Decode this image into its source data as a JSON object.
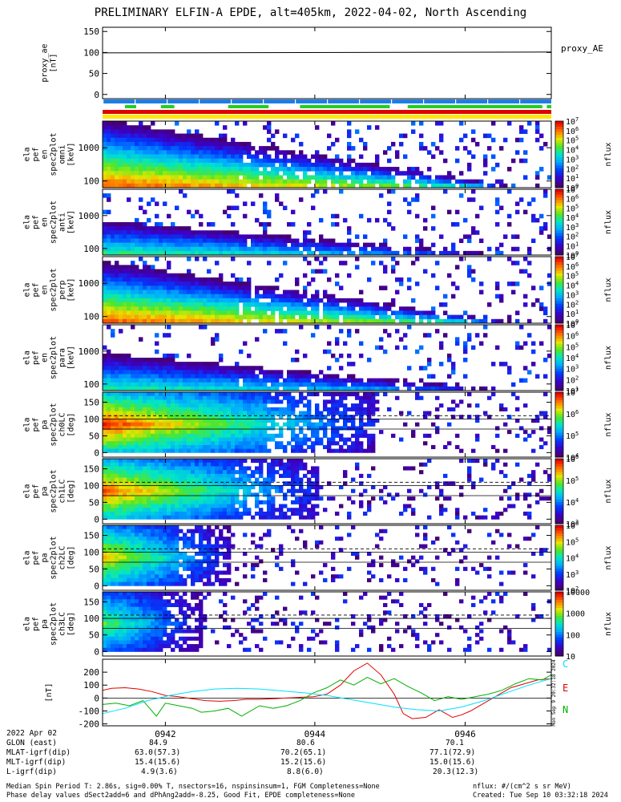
{
  "title": "PRELIMINARY ELFIN-A EPDE, alt=405km, 2022-04-02, North Ascending",
  "chart_data": [
    {
      "type": "line",
      "name": "proxy_ae",
      "ylabel_lines": [
        "proxy_ae",
        "[nT]"
      ],
      "legend": "proxy_AE",
      "yticks": [
        "150",
        "100",
        "50",
        "0"
      ],
      "ytick_values": [
        150,
        100,
        50,
        0
      ],
      "ylim": [
        -10,
        160
      ],
      "x": [
        0,
        1
      ],
      "values": [
        99,
        101
      ]
    },
    {
      "type": "heatmap",
      "name": "spec_omni",
      "ylabel_lines": [
        "ela",
        "pef",
        "en",
        "spec2plot",
        "omni",
        "[keV]"
      ],
      "yticks": [
        "1000",
        "100"
      ],
      "colorbar_ticks": [
        "10^7",
        "10^6",
        "10^5",
        "10^4",
        "10^3",
        "10^2",
        "10^1",
        "10^0"
      ],
      "colorbar_label": "nflux"
    },
    {
      "type": "heatmap",
      "name": "spec_anti",
      "ylabel_lines": [
        "ela",
        "pef",
        "en",
        "spec2plot",
        "anti",
        "[keV]"
      ],
      "yticks": [
        "1000",
        "100"
      ],
      "colorbar_ticks": [
        "10^7",
        "10^6",
        "10^5",
        "10^4",
        "10^3",
        "10^2",
        "10^1",
        "10^0"
      ],
      "colorbar_label": "nflux"
    },
    {
      "type": "heatmap",
      "name": "spec_perp",
      "ylabel_lines": [
        "ela",
        "pef",
        "en",
        "spec2plot",
        "perp",
        "[keV]"
      ],
      "yticks": [
        "1000",
        "100"
      ],
      "colorbar_ticks": [
        "10^7",
        "10^6",
        "10^5",
        "10^4",
        "10^3",
        "10^2",
        "10^1",
        "10^0"
      ],
      "colorbar_label": "nflux"
    },
    {
      "type": "heatmap",
      "name": "spec_para",
      "ylabel_lines": [
        "ela",
        "pef",
        "en",
        "spec2plot",
        "para",
        "[keV]"
      ],
      "yticks": [
        "1000",
        "100"
      ],
      "colorbar_ticks": [
        "10^7",
        "10^6",
        "10^5",
        "10^4",
        "10^3",
        "10^2",
        "10^1"
      ],
      "colorbar_label": "nflux"
    },
    {
      "type": "heatmap",
      "name": "pa_ch0",
      "ylabel_lines": [
        "ela",
        "pef",
        "pa",
        "spec2plot",
        "ch0LC",
        "[deg]"
      ],
      "yticks": [
        "150",
        "100",
        "50",
        "0"
      ],
      "colorbar_ticks": [
        "10^7",
        "10^6",
        "10^5",
        "10^4"
      ],
      "colorbar_label": "nflux"
    },
    {
      "type": "heatmap",
      "name": "pa_ch1",
      "ylabel_lines": [
        "ela",
        "pef",
        "pa",
        "spec2plot",
        "ch1LC",
        "[deg]"
      ],
      "yticks": [
        "150",
        "100",
        "50",
        "0"
      ],
      "colorbar_ticks": [
        "10^6",
        "10^5",
        "10^4",
        "10^3"
      ],
      "colorbar_label": "nflux"
    },
    {
      "type": "heatmap",
      "name": "pa_ch2",
      "ylabel_lines": [
        "ela",
        "pef",
        "pa",
        "spec2plot",
        "ch2LC",
        "[deg]"
      ],
      "yticks": [
        "150",
        "100",
        "50",
        "0"
      ],
      "colorbar_ticks": [
        "10^6",
        "10^5",
        "10^4",
        "10^3",
        "10^2"
      ],
      "colorbar_label": "nflux"
    },
    {
      "type": "heatmap",
      "name": "pa_ch3",
      "ylabel_lines": [
        "ela",
        "pef",
        "pa",
        "spec2plot",
        "ch3LC",
        "[deg]"
      ],
      "yticks": [
        "150",
        "100",
        "50",
        "0"
      ],
      "colorbar_ticks": [
        "10000",
        "1000",
        "100",
        "10"
      ],
      "colorbar_label": "nflux"
    },
    {
      "type": "line",
      "name": "dB",
      "ylabel_lines": [
        "[nT]"
      ],
      "yticks": [
        "200",
        "100",
        "0",
        "-100",
        "-200"
      ],
      "ytick_values": [
        200,
        100,
        0,
        -100,
        -200
      ],
      "ylim": [
        -215,
        300
      ],
      "legend": [
        "C",
        "E",
        "N"
      ],
      "series": [
        {
          "name": "E",
          "color": "#e00000",
          "x": [
            0,
            0.02,
            0.05,
            0.08,
            0.11,
            0.14,
            0.17,
            0.2,
            0.23,
            0.26,
            0.29,
            0.32,
            0.35,
            0.38,
            0.41,
            0.44,
            0.47,
            0.5,
            0.53,
            0.56,
            0.59,
            0.62,
            0.65,
            0.67,
            0.69,
            0.72,
            0.75,
            0.78,
            0.8,
            0.82,
            0.85,
            0.88,
            0.91,
            0.94,
            0.97,
            1.0
          ],
          "values": [
            60,
            75,
            80,
            70,
            50,
            20,
            10,
            -5,
            -20,
            -25,
            -20,
            -10,
            -10,
            -5,
            0,
            5,
            10,
            30,
            100,
            210,
            270,
            180,
            30,
            -120,
            -160,
            -150,
            -90,
            -150,
            -130,
            -100,
            -40,
            20,
            80,
            110,
            140,
            150
          ]
        },
        {
          "name": "N",
          "color": "#00b000",
          "x": [
            0,
            0.03,
            0.06,
            0.09,
            0.12,
            0.14,
            0.17,
            0.2,
            0.22,
            0.25,
            0.28,
            0.31,
            0.35,
            0.38,
            0.41,
            0.44,
            0.47,
            0.5,
            0.53,
            0.56,
            0.59,
            0.62,
            0.65,
            0.68,
            0.71,
            0.74,
            0.77,
            0.8,
            0.83,
            0.86,
            0.89,
            0.92,
            0.95,
            0.98,
            1.0
          ],
          "values": [
            -50,
            -40,
            -60,
            -20,
            -140,
            -40,
            -60,
            -80,
            -110,
            -100,
            -80,
            -140,
            -60,
            -80,
            -60,
            -20,
            40,
            80,
            140,
            100,
            160,
            110,
            150,
            90,
            40,
            -20,
            10,
            -10,
            10,
            30,
            60,
            110,
            150,
            140,
            180
          ]
        },
        {
          "name": "C",
          "color": "#00e0ff",
          "x": [
            0,
            0.05,
            0.1,
            0.15,
            0.2,
            0.25,
            0.3,
            0.35,
            0.4,
            0.45,
            0.5,
            0.55,
            0.6,
            0.65,
            0.7,
            0.75,
            0.8,
            0.85,
            0.9,
            0.95,
            1.0
          ],
          "values": [
            -120,
            -80,
            -20,
            20,
            50,
            70,
            75,
            70,
            55,
            40,
            20,
            -10,
            -40,
            -70,
            -90,
            -100,
            -70,
            -20,
            40,
            100,
            150
          ]
        }
      ]
    }
  ],
  "time_axis": {
    "ticks": [
      "0942",
      "0944",
      "0946"
    ],
    "tick_fractions": [
      0.14,
      0.473,
      0.808
    ]
  },
  "orbit_table": {
    "date_label": "2022 Apr 02",
    "rows": [
      {
        "label": "GLON (east)",
        "values": [
          "84.9",
          "80.6",
          "70.1"
        ]
      },
      {
        "label": "MLAT-igrf(dip)",
        "values": [
          "63.0(57.3)",
          "70.2(65.1)",
          "77.1(72.9)"
        ]
      },
      {
        "label": "MLT-igrf(dip)",
        "values": [
          "15.4(15.6)",
          "15.2(15.6)",
          "15.0(15.6)"
        ]
      },
      {
        "label": "L-igrf(dip)",
        "values": [
          "4.9(3.6)",
          "8.8(6.0)",
          "20.3(12.3)"
        ]
      }
    ]
  },
  "footer": {
    "line1": "Median Spin Period T: 2.86s, sig=0.00% T, nsectors=16, nspinsinsum=1, FGM Completeness=None",
    "line2": "Phase delay values dSect2add=6 and dPhAng2add=-8.25, Good Fit, EPDE completeness=None",
    "units": "nflux: #/(cm^2 s sr MeV)",
    "created": "Created: Tue Sep 10 03:32:18 2024",
    "side_stamp": "Mon Sep 9 20:32:18 2024"
  },
  "colors": {
    "bar_blue": "#1e7ee6",
    "bar_green": "#20d020",
    "bar_red": "#e00000",
    "bar_yellow": "#ffe600"
  },
  "status_bars": {
    "green_segments": [
      [
        0.05,
        0.075
      ],
      [
        0.13,
        0.16
      ],
      [
        0.28,
        0.37
      ],
      [
        0.44,
        0.64
      ],
      [
        0.68,
        0.98
      ],
      [
        0.99,
        1.0
      ]
    ]
  }
}
